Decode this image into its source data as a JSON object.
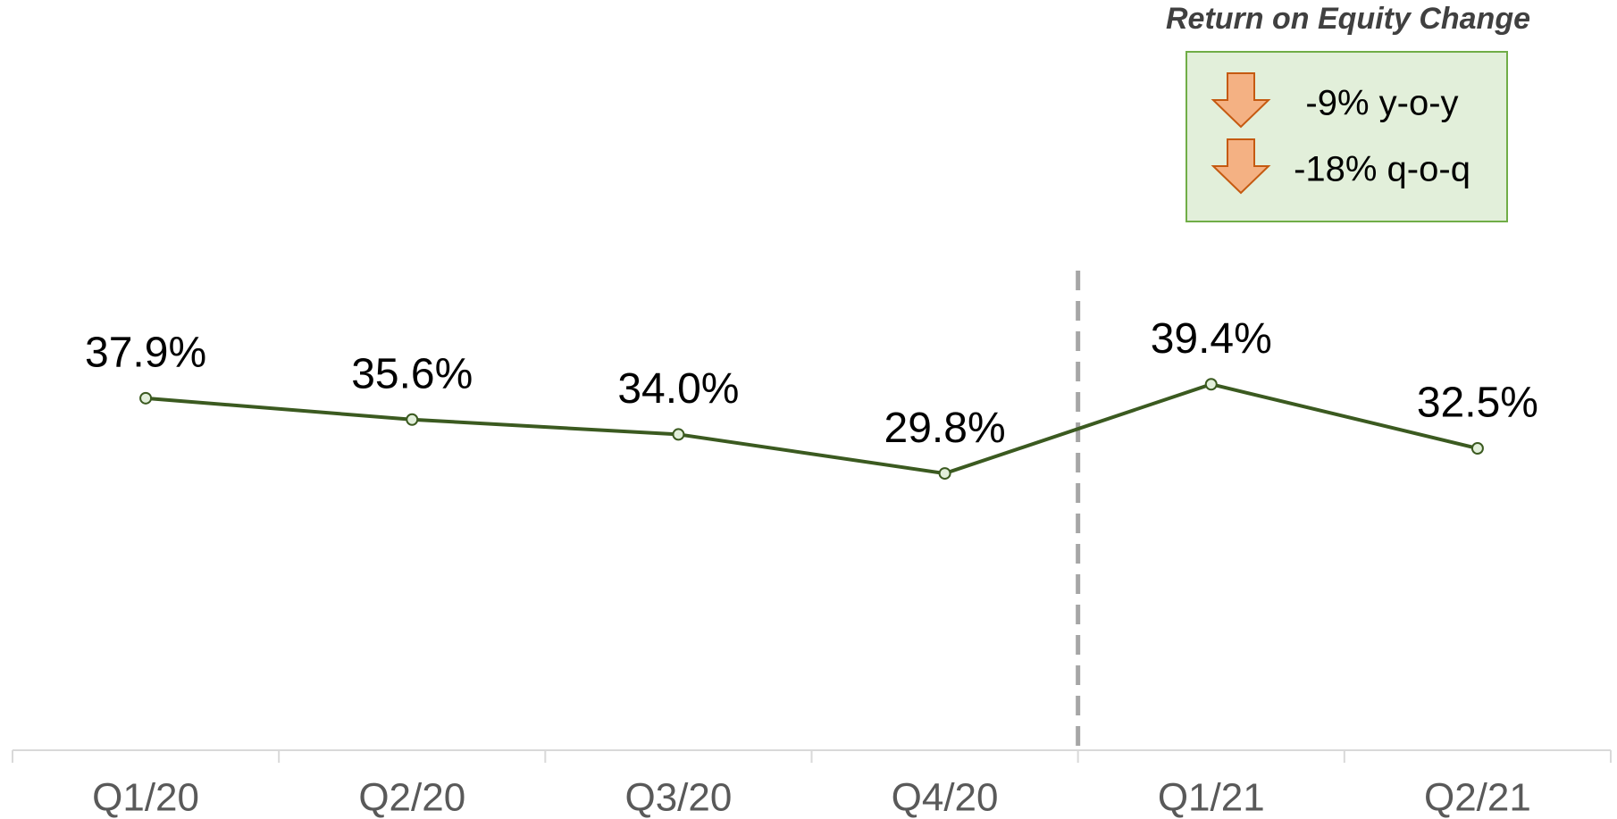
{
  "chart_data": {
    "type": "line",
    "categories": [
      "Q1/20",
      "Q2/20",
      "Q3/20",
      "Q4/20",
      "Q1/21",
      "Q2/21"
    ],
    "values": [
      37.9,
      35.6,
      34.0,
      29.8,
      39.4,
      32.5
    ],
    "value_labels": [
      "37.9%",
      "35.6%",
      "34.0%",
      "29.8%",
      "39.4%",
      "32.5%"
    ],
    "color": "#3b5a20",
    "ylim": [
      0,
      80
    ],
    "annotation": {
      "title": "Return on Equity Change",
      "items": [
        "-9% y-o-y",
        "-18% q-o-q"
      ]
    }
  }
}
